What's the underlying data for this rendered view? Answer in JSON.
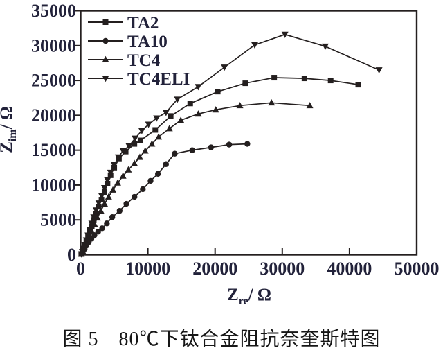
{
  "figure": {
    "caption": "图 5　80℃下钛合金阻抗奈奎斯特图"
  },
  "colors": {
    "ink": "#241f1f",
    "text": "#22223a",
    "background": "#ffffff"
  },
  "axis_titles": {
    "y_main": "Z",
    "y_sub": "im",
    "y_unit": "/ Ω",
    "x_main": "Z",
    "x_sub": "re",
    "x_unit": "/ Ω"
  },
  "chart_data": {
    "type": "line",
    "subtype": "nyquist-scatter-line",
    "title": "",
    "xlabel": "Z_re / Ω",
    "ylabel": "Z_im / Ω",
    "xlim": [
      0,
      50000
    ],
    "ylim": [
      0,
      35000
    ],
    "x_ticks": [
      0,
      10000,
      20000,
      30000,
      40000,
      50000
    ],
    "y_ticks": [
      0,
      5000,
      10000,
      15000,
      20000,
      25000,
      30000,
      35000
    ],
    "grid": false,
    "legend_position": "top-left-inside",
    "series": [
      {
        "name": "TA2",
        "marker": "square",
        "color": "#241f1f",
        "points": [
          [
            100,
            100
          ],
          [
            250,
            400
          ],
          [
            420,
            800
          ],
          [
            620,
            1300
          ],
          [
            850,
            1900
          ],
          [
            1100,
            2600
          ],
          [
            1350,
            3300
          ],
          [
            1650,
            4100
          ],
          [
            1950,
            5000
          ],
          [
            2300,
            5900
          ],
          [
            2700,
            6900
          ],
          [
            3100,
            7900
          ],
          [
            3550,
            9000
          ],
          [
            4000,
            10200
          ],
          [
            4450,
            11400
          ],
          [
            5000,
            12500
          ],
          [
            5700,
            13800
          ],
          [
            6700,
            14800
          ],
          [
            8000,
            15900
          ],
          [
            8900,
            16400
          ],
          [
            11100,
            17900
          ],
          [
            13400,
            19900
          ],
          [
            16300,
            21700
          ],
          [
            20400,
            23400
          ],
          [
            24500,
            24600
          ],
          [
            28800,
            25400
          ],
          [
            33300,
            25300
          ],
          [
            37200,
            25000
          ],
          [
            41300,
            24400
          ]
        ]
      },
      {
        "name": "TA10",
        "marker": "circle",
        "color": "#241f1f",
        "points": [
          [
            100,
            100
          ],
          [
            300,
            400
          ],
          [
            550,
            800
          ],
          [
            850,
            1300
          ],
          [
            1200,
            1800
          ],
          [
            1600,
            2300
          ],
          [
            2050,
            2800
          ],
          [
            2600,
            3300
          ],
          [
            3200,
            3800
          ],
          [
            3900,
            4500
          ],
          [
            4700,
            5400
          ],
          [
            5800,
            6300
          ],
          [
            6800,
            7300
          ],
          [
            8000,
            8300
          ],
          [
            9250,
            9400
          ],
          [
            10400,
            10600
          ],
          [
            11500,
            11600
          ],
          [
            12700,
            13000
          ],
          [
            14000,
            14500
          ],
          [
            16600,
            15000
          ],
          [
            19400,
            15400
          ],
          [
            22100,
            15800
          ],
          [
            24800,
            15900
          ]
        ]
      },
      {
        "name": "TC4",
        "marker": "triangle-up",
        "color": "#241f1f",
        "points": [
          [
            100,
            100
          ],
          [
            300,
            500
          ],
          [
            550,
            1100
          ],
          [
            850,
            1800
          ],
          [
            1200,
            2600
          ],
          [
            1600,
            3500
          ],
          [
            2050,
            4400
          ],
          [
            2500,
            5300
          ],
          [
            3000,
            6300
          ],
          [
            3550,
            7300
          ],
          [
            4150,
            8300
          ],
          [
            4800,
            9300
          ],
          [
            5500,
            10300
          ],
          [
            6300,
            11300
          ],
          [
            7100,
            12200
          ],
          [
            8000,
            13100
          ],
          [
            8800,
            14000
          ],
          [
            9600,
            14900
          ],
          [
            10600,
            15900
          ],
          [
            11600,
            16900
          ],
          [
            13200,
            18100
          ],
          [
            14900,
            19300
          ],
          [
            17500,
            20200
          ],
          [
            20100,
            20800
          ],
          [
            23700,
            21400
          ],
          [
            28400,
            21800
          ],
          [
            34100,
            21400
          ]
        ]
      },
      {
        "name": "TC4ELI",
        "marker": "triangle-down",
        "color": "#241f1f",
        "points": [
          [
            100,
            100
          ],
          [
            250,
            450
          ],
          [
            420,
            900
          ],
          [
            620,
            1450
          ],
          [
            850,
            2100
          ],
          [
            1100,
            2800
          ],
          [
            1350,
            3600
          ],
          [
            1650,
            4500
          ],
          [
            1950,
            5400
          ],
          [
            2300,
            6400
          ],
          [
            2700,
            7400
          ],
          [
            3100,
            8500
          ],
          [
            3550,
            9600
          ],
          [
            4000,
            10700
          ],
          [
            4450,
            11800
          ],
          [
            5000,
            12900
          ],
          [
            5600,
            14000
          ],
          [
            6300,
            14900
          ],
          [
            7200,
            15600
          ],
          [
            8100,
            16700
          ],
          [
            9100,
            17800
          ],
          [
            10100,
            18700
          ],
          [
            11300,
            19600
          ],
          [
            12700,
            20400
          ],
          [
            14400,
            22300
          ],
          [
            17500,
            24100
          ],
          [
            21400,
            26900
          ],
          [
            25900,
            30100
          ],
          [
            30400,
            31600
          ],
          [
            36400,
            29900
          ],
          [
            44400,
            26500
          ]
        ]
      }
    ]
  }
}
